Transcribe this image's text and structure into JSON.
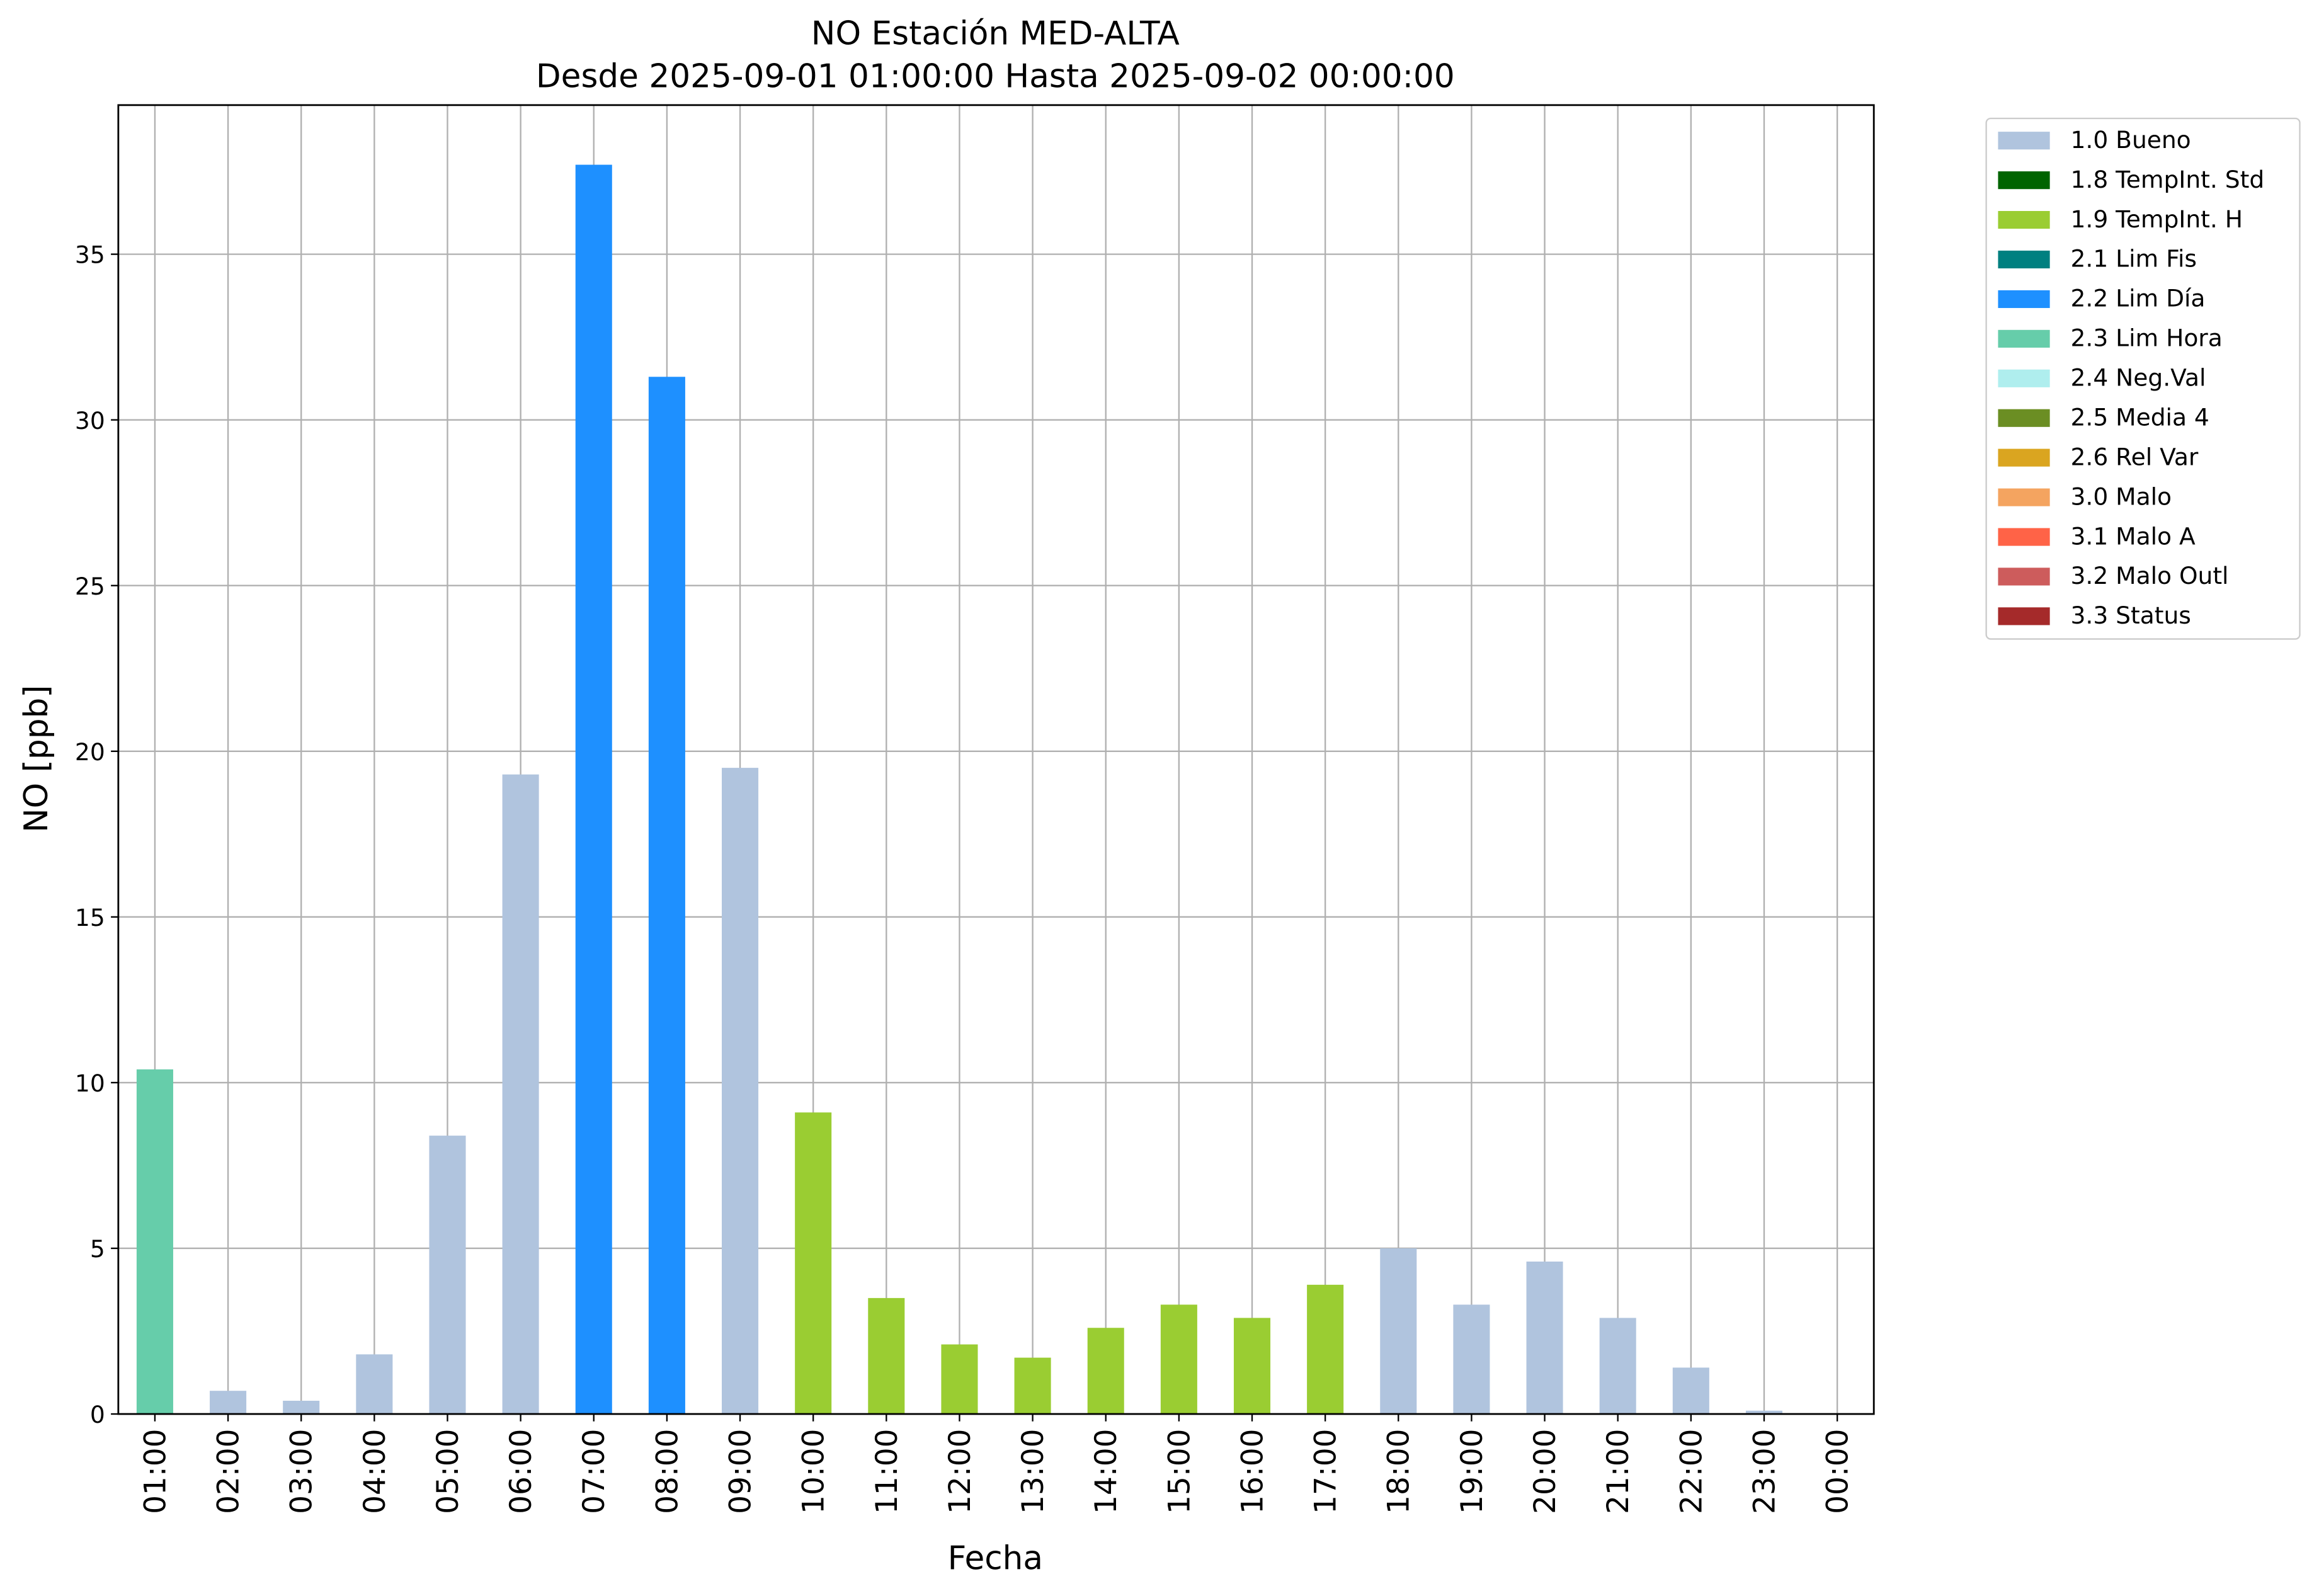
{
  "chart_data": {
    "type": "bar",
    "stacked": true,
    "title": "NO Estación MED-ALTA",
    "subtitle": "Desde 2025-09-01 01:00:00 Hasta 2025-09-02 00:00:00",
    "x_label": "Fecha",
    "y_label": "NO [ppb]",
    "categories": [
      "01:00",
      "02:00",
      "03:00",
      "04:00",
      "05:00",
      "06:00",
      "07:00",
      "08:00",
      "09:00",
      "10:00",
      "11:00",
      "12:00",
      "13:00",
      "14:00",
      "15:00",
      "16:00",
      "17:00",
      "18:00",
      "19:00",
      "20:00",
      "21:00",
      "22:00",
      "23:00",
      "00:00"
    ],
    "series": [
      {
        "name": "1.0 Bueno",
        "color": "#b0c4de",
        "values": [
          null,
          0.7,
          0.4,
          1.8,
          8.4,
          19.3,
          null,
          null,
          19.5,
          null,
          null,
          null,
          null,
          null,
          null,
          null,
          null,
          5.0,
          3.3,
          4.6,
          2.9,
          1.4,
          0.1,
          null
        ]
      },
      {
        "name": "1.8 TempInt. Std",
        "color": "#006400",
        "values": [
          null,
          null,
          null,
          null,
          null,
          null,
          null,
          null,
          null,
          null,
          null,
          null,
          null,
          null,
          null,
          null,
          null,
          null,
          null,
          null,
          null,
          null,
          null,
          null
        ]
      },
      {
        "name": "1.9 TempInt. H",
        "color": "#9acd32",
        "values": [
          null,
          null,
          null,
          null,
          null,
          null,
          null,
          null,
          null,
          9.1,
          3.5,
          2.1,
          1.7,
          2.6,
          3.3,
          2.9,
          3.9,
          null,
          null,
          null,
          null,
          null,
          null,
          null
        ]
      },
      {
        "name": "2.1 Lim Fis",
        "color": "#008080",
        "values": [
          null,
          null,
          null,
          null,
          null,
          null,
          null,
          null,
          null,
          null,
          null,
          null,
          null,
          null,
          null,
          null,
          null,
          null,
          null,
          null,
          null,
          null,
          null,
          null
        ]
      },
      {
        "name": "2.2 Lim Día",
        "color": "#1e90ff",
        "values": [
          null,
          null,
          null,
          null,
          null,
          null,
          37.7,
          31.3,
          null,
          null,
          null,
          null,
          null,
          null,
          null,
          null,
          null,
          null,
          null,
          null,
          null,
          null,
          null,
          null
        ]
      },
      {
        "name": "2.3 Lim Hora",
        "color": "#66cdaa",
        "values": [
          10.4,
          null,
          null,
          null,
          null,
          null,
          null,
          null,
          null,
          null,
          null,
          null,
          null,
          null,
          null,
          null,
          null,
          null,
          null,
          null,
          null,
          null,
          null,
          null
        ]
      },
      {
        "name": "2.4 Neg.Val",
        "color": "#afeeee",
        "values": [
          null,
          null,
          null,
          null,
          null,
          null,
          null,
          null,
          null,
          null,
          null,
          null,
          null,
          null,
          null,
          null,
          null,
          null,
          null,
          null,
          null,
          null,
          null,
          null
        ]
      },
      {
        "name": "2.5 Media 4",
        "color": "#6b8e23",
        "values": [
          null,
          null,
          null,
          null,
          null,
          null,
          null,
          null,
          null,
          null,
          null,
          null,
          null,
          null,
          null,
          null,
          null,
          null,
          null,
          null,
          null,
          null,
          null,
          null
        ]
      },
      {
        "name": "2.6 Rel Var",
        "color": "#daa520",
        "values": [
          null,
          null,
          null,
          null,
          null,
          null,
          null,
          null,
          null,
          null,
          null,
          null,
          null,
          null,
          null,
          null,
          null,
          null,
          null,
          null,
          null,
          null,
          null,
          null
        ]
      },
      {
        "name": "3.0 Malo",
        "color": "#f4a460",
        "values": [
          null,
          null,
          null,
          null,
          null,
          null,
          null,
          null,
          null,
          null,
          null,
          null,
          null,
          null,
          null,
          null,
          null,
          null,
          null,
          null,
          null,
          null,
          null,
          null
        ]
      },
      {
        "name": "3.1 Malo A",
        "color": "#ff6347",
        "values": [
          null,
          null,
          null,
          null,
          null,
          null,
          null,
          null,
          null,
          null,
          null,
          null,
          null,
          null,
          null,
          null,
          null,
          null,
          null,
          null,
          null,
          null,
          null,
          null
        ]
      },
      {
        "name": "3.2 Malo Outl",
        "color": "#cd5c5c",
        "values": [
          null,
          null,
          null,
          null,
          null,
          null,
          null,
          null,
          null,
          null,
          null,
          null,
          null,
          null,
          null,
          null,
          null,
          null,
          null,
          null,
          null,
          null,
          null,
          null
        ]
      },
      {
        "name": "3.3 Status",
        "color": "#a52a2a",
        "values": [
          null,
          null,
          null,
          null,
          null,
          null,
          null,
          null,
          null,
          null,
          null,
          null,
          null,
          null,
          null,
          null,
          null,
          null,
          null,
          null,
          null,
          null,
          null,
          null
        ]
      }
    ],
    "ylim": [
      0,
      39.5
    ],
    "yticks": [
      0,
      5,
      10,
      15,
      20,
      25,
      30,
      35
    ],
    "grid": true,
    "legend": "outside-upper-right"
  }
}
